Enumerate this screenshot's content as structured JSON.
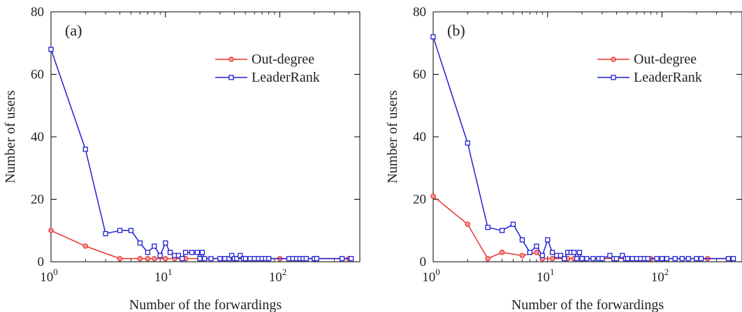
{
  "chart_data": [
    {
      "type": "line",
      "panel_label": "(a)",
      "xlabel": "Number of the forwardings",
      "ylabel": "Number of users",
      "xscale": "log",
      "xlim": [
        1,
        500
      ],
      "ylim": [
        0,
        80
      ],
      "x_ticks": [
        {
          "value": 1,
          "base": "10",
          "exp": "0"
        },
        {
          "value": 10,
          "base": "10",
          "exp": "1"
        },
        {
          "value": 100,
          "base": "10",
          "exp": "2"
        }
      ],
      "y_ticks": [
        "0",
        "20",
        "40",
        "60",
        "80"
      ],
      "grid": false,
      "legend_position": "top-right",
      "series": [
        {
          "name": "Out-degree",
          "color": "#e8332f",
          "marker": "circle",
          "x": [
            1,
            2,
            4,
            6,
            7,
            8,
            10,
            12,
            15,
            20,
            30,
            50,
            100,
            200,
            400
          ],
          "y": [
            10,
            5,
            1,
            1,
            1,
            1,
            1,
            1,
            1,
            1,
            1,
            1,
            1,
            1,
            1
          ]
        },
        {
          "name": "LeaderRank",
          "color": "#1f1fd6",
          "marker": "square",
          "x": [
            1,
            2,
            3,
            4,
            5,
            6,
            7,
            8,
            9,
            10,
            11,
            12,
            13,
            14,
            15,
            17,
            19,
            20,
            21,
            22,
            25,
            30,
            33,
            36,
            38,
            40,
            42,
            45,
            48,
            50,
            55,
            60,
            65,
            70,
            75,
            80,
            120,
            130,
            140,
            150,
            160,
            170,
            200,
            210,
            350,
            420
          ],
          "y": [
            68,
            36,
            9,
            10,
            10,
            6,
            3,
            5,
            2,
            6,
            3,
            2,
            2,
            1,
            3,
            3,
            3,
            1,
            3,
            1,
            1,
            1,
            1,
            1,
            2,
            1,
            1,
            2,
            1,
            1,
            1,
            1,
            1,
            1,
            1,
            1,
            1,
            1,
            1,
            1,
            1,
            1,
            1,
            1,
            1,
            1
          ]
        }
      ]
    },
    {
      "type": "line",
      "panel_label": "(b)",
      "xlabel": "Number of the forwardings",
      "ylabel": "Number of users",
      "xscale": "log",
      "xlim": [
        1,
        500
      ],
      "ylim": [
        0,
        80
      ],
      "x_ticks": [
        {
          "value": 1,
          "base": "10",
          "exp": "0"
        },
        {
          "value": 10,
          "base": "10",
          "exp": "1"
        },
        {
          "value": 100,
          "base": "10",
          "exp": "2"
        }
      ],
      "y_ticks": [
        "0",
        "20",
        "40",
        "60",
        "80"
      ],
      "grid": false,
      "legend_position": "top-right",
      "series": [
        {
          "name": "Out-degree",
          "color": "#e8332f",
          "marker": "circle",
          "x": [
            1,
            2,
            3,
            4,
            6,
            8,
            9,
            11,
            15,
            17,
            20,
            30,
            50,
            80,
            150,
            250,
            400
          ],
          "y": [
            21,
            12,
            1,
            3,
            2,
            3,
            1,
            1,
            1,
            1,
            1,
            1,
            1,
            1,
            1,
            1,
            1
          ]
        },
        {
          "name": "LeaderRank",
          "color": "#1f1fd6",
          "marker": "square",
          "x": [
            1,
            2,
            3,
            4,
            5,
            6,
            7,
            8,
            9,
            10,
            11,
            12,
            13,
            14,
            15,
            16,
            17,
            18,
            19,
            20,
            22,
            25,
            28,
            30,
            35,
            38,
            40,
            45,
            48,
            50,
            55,
            60,
            65,
            70,
            75,
            90,
            100,
            110,
            130,
            150,
            170,
            200,
            220,
            380,
            420
          ],
          "y": [
            72,
            38,
            11,
            10,
            12,
            7,
            3,
            5,
            2,
            7,
            3,
            2,
            2,
            1,
            3,
            3,
            3,
            1,
            3,
            1,
            1,
            1,
            1,
            1,
            2,
            1,
            1,
            2,
            1,
            1,
            1,
            1,
            1,
            1,
            1,
            1,
            1,
            1,
            1,
            1,
            1,
            1,
            1,
            1,
            1
          ]
        }
      ]
    }
  ]
}
